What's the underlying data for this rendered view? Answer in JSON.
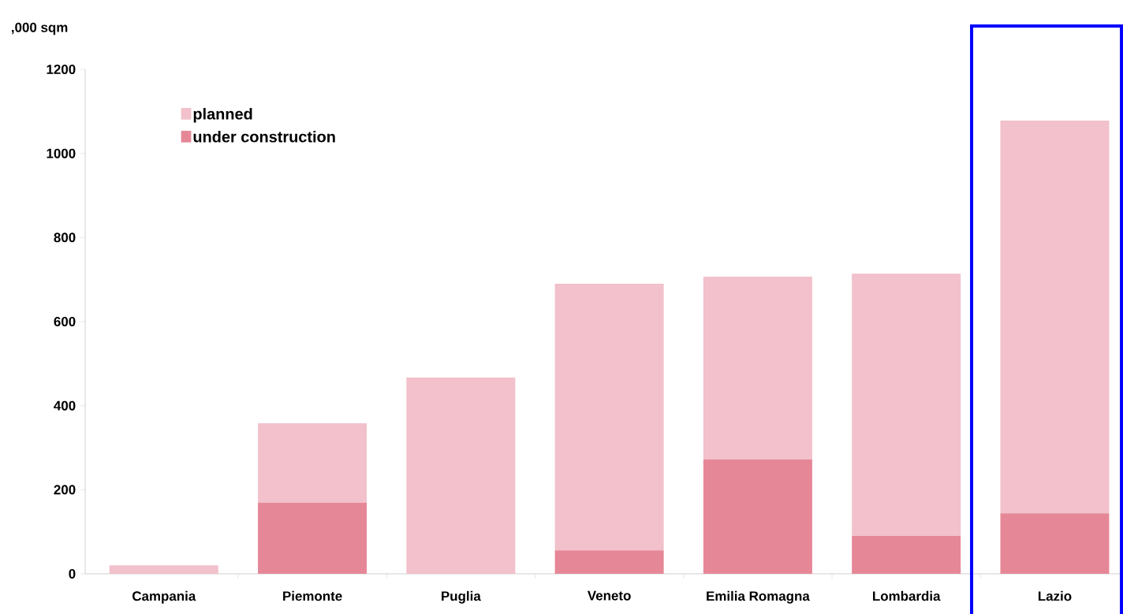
{
  "chart_data": {
    "type": "bar",
    "ylabel": ",000 sqm",
    "categories": [
      "Campania",
      "Piemonte",
      "Puglia",
      "Veneto",
      "Emilia Romagna",
      "Lombardia",
      "Lazio"
    ],
    "stacked": true,
    "series": [
      {
        "name": "under construction",
        "color": "#e68797",
        "values": [
          0,
          169,
          0,
          56,
          272,
          90,
          144
        ]
      },
      {
        "name": "planned",
        "color": "#f2c1cb",
        "values": [
          20,
          189,
          467,
          634,
          435,
          624,
          934
        ]
      }
    ],
    "ylim": [
      0,
      1200
    ],
    "yticks": [
      0,
      200,
      400,
      600,
      800,
      1000,
      1200
    ],
    "legend": "top left",
    "grid": false
  }
}
